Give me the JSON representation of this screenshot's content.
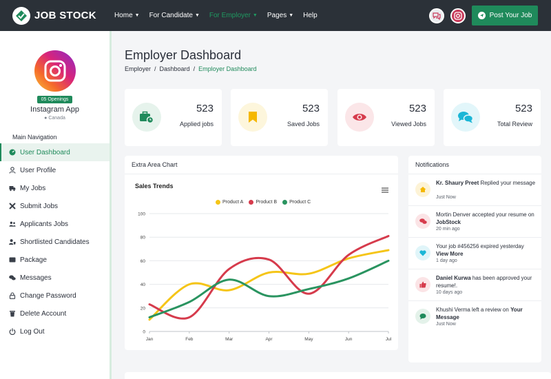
{
  "brand": {
    "name": "JOB STOCK",
    "accent": "#1f8a5b"
  },
  "nav": {
    "items": [
      {
        "label": "Home",
        "dropdown": true,
        "active": false
      },
      {
        "label": "For Candidate",
        "dropdown": true,
        "active": false
      },
      {
        "label": "For Employer",
        "dropdown": true,
        "active": true
      },
      {
        "label": "Pages",
        "dropdown": true,
        "active": false
      },
      {
        "label": "Help",
        "dropdown": false,
        "active": false
      }
    ],
    "post_button": "Post Your Job"
  },
  "profile": {
    "openings": "05 Openings",
    "company": "Instagram App",
    "location": "Canada"
  },
  "sidebar": {
    "heading": "Main Navigation",
    "items": [
      {
        "label": "User Dashboard",
        "icon": "dashboard-icon",
        "active": true
      },
      {
        "label": "User Profile",
        "icon": "user-icon",
        "active": false
      },
      {
        "label": "My Jobs",
        "icon": "truck-icon",
        "active": false
      },
      {
        "label": "Submit Jobs",
        "icon": "tools-icon",
        "active": false
      },
      {
        "label": "Applicants Jobs",
        "icon": "users-icon",
        "active": false
      },
      {
        "label": "Shortlisted Candidates",
        "icon": "user-shield-icon",
        "active": false
      },
      {
        "label": "Package",
        "icon": "wallet-icon",
        "active": false
      },
      {
        "label": "Messages",
        "icon": "comments-icon",
        "active": false
      },
      {
        "label": "Change Password",
        "icon": "lock-icon",
        "active": false
      },
      {
        "label": "Delete Account",
        "icon": "trash-icon",
        "active": false
      },
      {
        "label": "Log Out",
        "icon": "power-icon",
        "active": false
      }
    ]
  },
  "page": {
    "title": "Employer Dashboard",
    "breadcrumb": [
      "Employer",
      "Dashboard",
      "Employer Dashboard"
    ]
  },
  "stats": [
    {
      "value": "523",
      "label": "Applied jobs",
      "icon": "briefcase-clock-icon",
      "color": "#1f8a5b",
      "bg": "#e6f3ec"
    },
    {
      "value": "523",
      "label": "Saved Jobs",
      "icon": "bookmark-icon",
      "color": "#f5b800",
      "bg": "#fdf6dc"
    },
    {
      "value": "523",
      "label": "Viewed Jobs",
      "icon": "eye-icon",
      "color": "#d63b4c",
      "bg": "#fbe6e8"
    },
    {
      "value": "523",
      "label": "Total Review",
      "icon": "comments-icon",
      "color": "#1bb6d6",
      "bg": "#e2f6fa"
    }
  ],
  "chart_card_title": "Extra Area Chart",
  "chart_data": {
    "type": "line",
    "title": "Sales Trends",
    "categories": [
      "Jan",
      "Feb",
      "Mar",
      "Apr",
      "May",
      "Jun",
      "Jul"
    ],
    "ylim": [
      0,
      100
    ],
    "yticks": [
      0,
      20,
      40,
      60,
      80,
      100
    ],
    "legend_position": "top-center",
    "grid": true,
    "series": [
      {
        "name": "Product A",
        "color": "#f5c518",
        "values": [
          10,
          40,
          35,
          50,
          49,
          62,
          69
        ]
      },
      {
        "name": "Product B",
        "color": "#d63b4c",
        "values": [
          23,
          12,
          53,
          61,
          32,
          65,
          81
        ]
      },
      {
        "name": "Product C",
        "color": "#2a9460",
        "values": [
          12,
          25,
          44,
          30,
          36,
          45,
          60
        ]
      }
    ]
  },
  "notifications": {
    "title": "Notifications",
    "items": [
      {
        "lead": "Kr. Shaury Preet",
        "text": " Replied your message",
        "time": "Just Now",
        "icon": "home-icon",
        "color": "#f5b800",
        "bg": "#fdf3d6"
      },
      {
        "lead": "",
        "text": "Mortin Denver accepted your resume on ",
        "tail": "JobStock",
        "time": "20 min ago",
        "icon": "comments-icon",
        "color": "#d63b4c",
        "bg": "#fbe4e6"
      },
      {
        "lead": "",
        "text": "Your job #456256 expired yesterday ",
        "tail": "View More",
        "time": "1 day ago",
        "icon": "heart-icon",
        "color": "#1bb6d6",
        "bg": "#e0f5f9"
      },
      {
        "lead": "Daniel Kurwa",
        "text": " has been approved your resume!.",
        "time": "10 days ago",
        "icon": "thumbs-up-icon",
        "color": "#d63b4c",
        "bg": "#fbe4e6"
      },
      {
        "lead": "",
        "text": "Khushi Verma left a review on ",
        "tail": "Your Message",
        "time": "Just Now",
        "icon": "chat-icon",
        "color": "#1f8a5b",
        "bg": "#e4f2ea"
      }
    ]
  }
}
